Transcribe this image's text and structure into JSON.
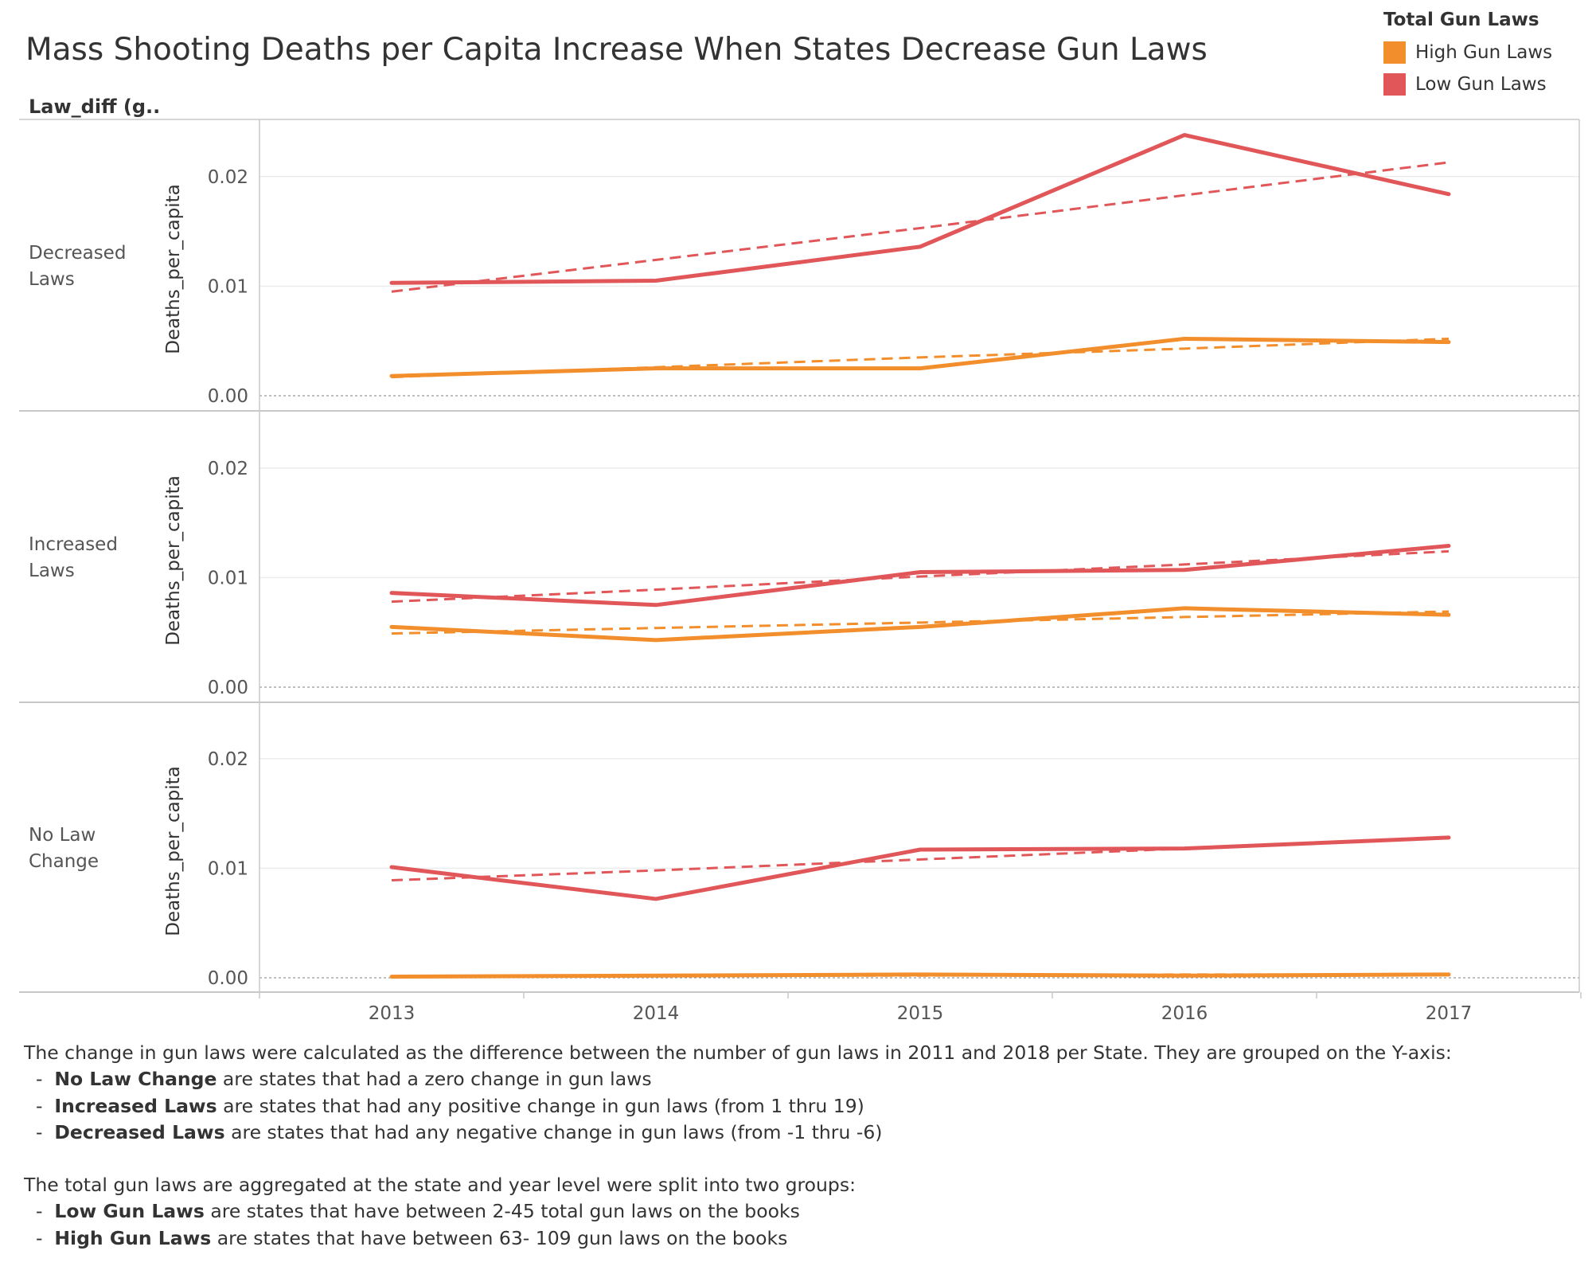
{
  "title": "Mass Shooting Deaths per Capita Increase When States  Decrease Gun Laws",
  "column_header": "Law_diff (g..",
  "legend": {
    "title": "Total Gun Laws",
    "items": [
      {
        "label": "High Gun Laws",
        "color": "#f28e2b"
      },
      {
        "label": "Low Gun Laws",
        "color": "#e15759"
      }
    ]
  },
  "footnote": {
    "intro": "The change in gun laws were calculated as the difference between the number of gun laws in 2011 and 2018  per State. They are grouped on the Y-axis:",
    "law_items": [
      {
        "bold": "No Law Change",
        "text": " are states that had a zero change in gun laws"
      },
      {
        "bold": "Increased Laws",
        "text": "  are states that had any positive change in gun laws (from 1 thru 19)"
      },
      {
        "bold": "Decreased Laws",
        "text": " are states that had any negative change in gun laws (from -1 thru -6)"
      }
    ],
    "groups_intro": "The total gun laws are aggregated at the state and year level were split into two groups:",
    "group_items": [
      {
        "bold": "Low Gun Laws",
        "text": " are states that have between 2-45 total gun laws on the books"
      },
      {
        "bold": "High Gun Laws",
        "text": " are states that have between 63- 109 gun laws on the books"
      }
    ]
  },
  "chart_data": {
    "type": "line",
    "x": [
      2013,
      2014,
      2015,
      2016,
      2017
    ],
    "x_tick_labels": [
      "2013",
      "2014",
      "2015",
      "2016",
      "2017"
    ],
    "ylabel": "Deaths_per_capita",
    "ylim": [
      0,
      0.025
    ],
    "y_ticks": [
      0.0,
      0.01,
      0.02
    ],
    "y_tick_labels": [
      "0.00",
      "0.01",
      "0.02"
    ],
    "trend_lines": "dashed linear trend per series",
    "panels": [
      {
        "label": "Decreased Laws",
        "series": [
          {
            "name": "Low Gun Laws",
            "color": "#e15759",
            "values": [
              0.0103,
              0.0105,
              0.0136,
              0.0238,
              0.0184
            ],
            "trend": [
              0.0095,
              0.0124,
              0.0153,
              0.0183,
              0.0213
            ]
          },
          {
            "name": "High Gun Laws",
            "color": "#f28e2b",
            "values": [
              0.0018,
              0.0025,
              0.0025,
              0.0052,
              0.0049
            ],
            "trend": [
              0.0017,
              0.0026,
              0.0035,
              0.0043,
              0.0052
            ]
          }
        ]
      },
      {
        "label": "Increased Laws",
        "series": [
          {
            "name": "Low Gun Laws",
            "color": "#e15759",
            "values": [
              0.0086,
              0.0075,
              0.0105,
              0.0107,
              0.0129
            ],
            "trend": [
              0.0078,
              0.0089,
              0.0101,
              0.0112,
              0.0124
            ]
          },
          {
            "name": "High Gun Laws",
            "color": "#f28e2b",
            "values": [
              0.0055,
              0.0043,
              0.0055,
              0.0072,
              0.0066
            ],
            "trend": [
              0.0049,
              0.0054,
              0.0059,
              0.0064,
              0.0069
            ]
          }
        ]
      },
      {
        "label": "No Law Change",
        "series": [
          {
            "name": "Low Gun Laws",
            "color": "#e15759",
            "values": [
              0.0101,
              0.0072,
              0.0117,
              0.0118,
              0.0128
            ],
            "trend": [
              0.0089,
              0.0098,
              0.0108,
              0.0118,
              0.0128
            ]
          },
          {
            "name": "High Gun Laws",
            "color": "#f28e2b",
            "values": [
              0.0001,
              0.0002,
              0.0003,
              0.0002,
              0.0003
            ],
            "trend": [
              0.0001,
              0.0002,
              0.0002,
              0.0003,
              0.0003
            ]
          }
        ]
      }
    ]
  }
}
